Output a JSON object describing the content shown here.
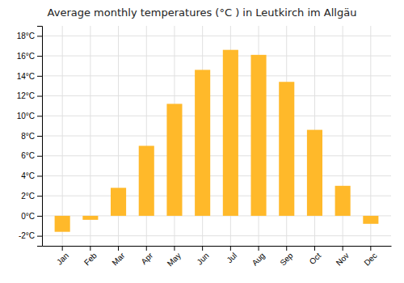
{
  "chart_data": {
    "type": "bar",
    "title": "Average monthly temperatures (°C ) in Leutkirch im Allgäu",
    "categories": [
      "Jan",
      "Feb",
      "Mar",
      "Apr",
      "May",
      "Jun",
      "Jul",
      "Aug",
      "Sep",
      "Oct",
      "Nov",
      "Dec"
    ],
    "values": [
      -1.6,
      -0.4,
      2.8,
      7.0,
      11.2,
      14.6,
      16.6,
      16.1,
      13.4,
      8.6,
      3.0,
      -0.8
    ],
    "color": "#FFB92A",
    "ylim": [
      -3,
      19
    ],
    "yticks": [
      {
        "value": -2,
        "label": "-2°C"
      },
      {
        "value": 0,
        "label": "0°C"
      },
      {
        "value": 2,
        "label": "2°C"
      },
      {
        "value": 4,
        "label": "4°C"
      },
      {
        "value": 6,
        "label": "6°C"
      },
      {
        "value": 8,
        "label": "8°C"
      },
      {
        "value": 10,
        "label": "10°C"
      },
      {
        "value": 12,
        "label": "12°C"
      },
      {
        "value": 14,
        "label": "14°C"
      },
      {
        "value": 16,
        "label": "16°C"
      },
      {
        "value": 18,
        "label": "18°C"
      }
    ],
    "grid": true
  }
}
